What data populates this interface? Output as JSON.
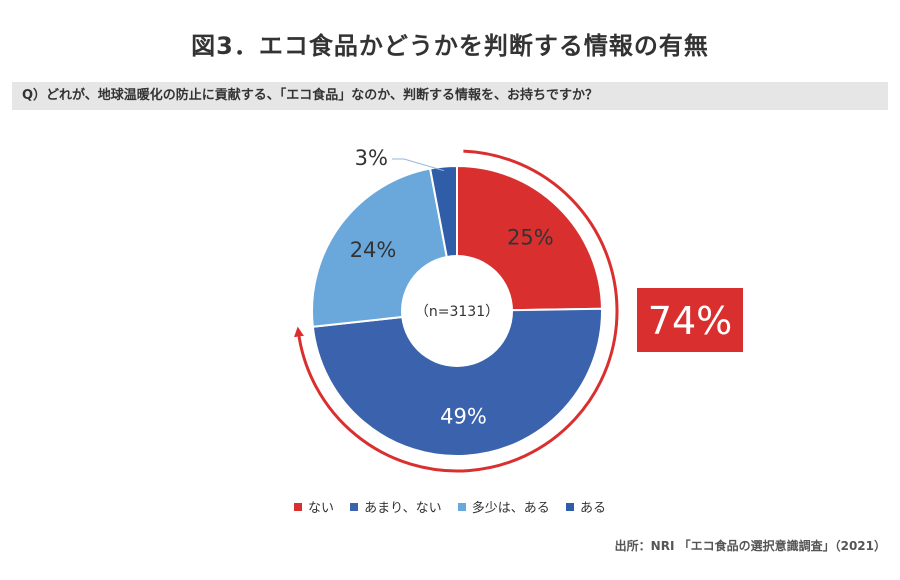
{
  "header": {
    "title": "図3．エコ食品かどうかを判断する情報の有無",
    "question": "Q）どれが、地球温暖化の防止に貢献する、「エコ食品」なのか、判断する情報を、お持ちですか？"
  },
  "chart_data": {
    "type": "donut",
    "center_label": "（n=3131）",
    "categories": [
      "ない",
      "あまり、ない",
      "多少は、ある",
      "ある"
    ],
    "values": [
      25,
      49,
      24,
      3
    ],
    "data_labels": [
      "25%",
      "49%",
      "24%",
      "3%"
    ],
    "colors": [
      "#d9302f",
      "#3a62ad",
      "#6aa8dc",
      "#2f5da8"
    ],
    "label_colors": [
      "#333333",
      "#ffffff",
      "#333333",
      "#333333"
    ],
    "legend_position": "bottom",
    "annotation": {
      "text": "74%",
      "covers": [
        "ない",
        "あまり、ない"
      ],
      "color": "#d9302f"
    }
  },
  "footer": {
    "source": "出所：NRI 「エコ食品の選択意識調査」（2021）"
  }
}
